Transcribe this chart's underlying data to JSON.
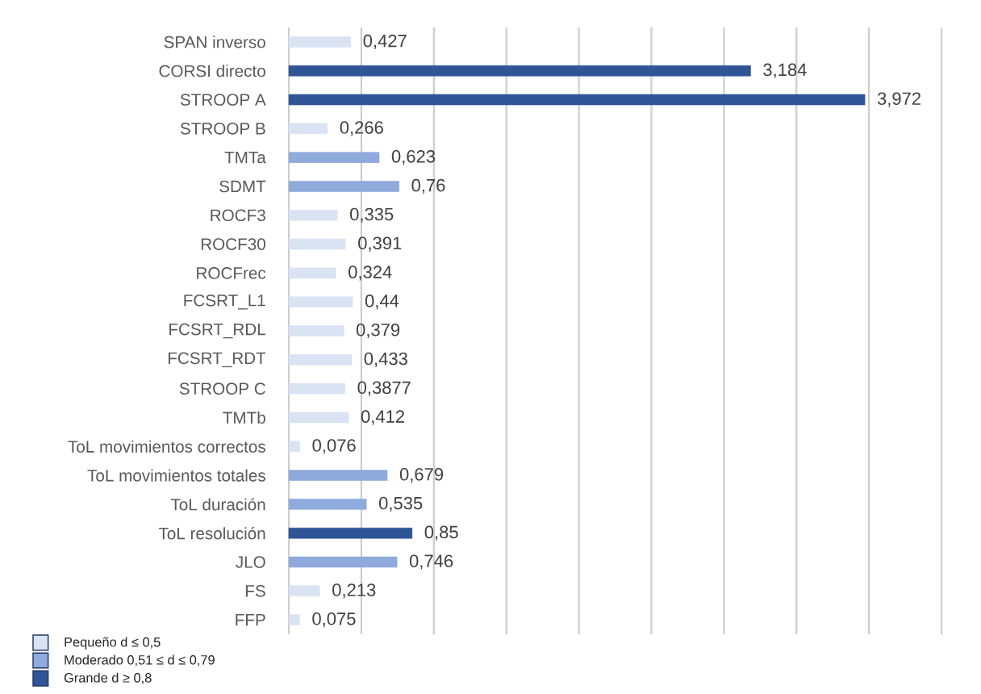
{
  "chart_data": {
    "type": "bar",
    "orientation": "horizontal",
    "stacked": true,
    "categories": [
      "SPAN inverso",
      "CORSI directo",
      "STROOP A",
      "STROOP B",
      "TMTa",
      "SDMT",
      "ROCF3",
      "ROCF30",
      "ROCFrec",
      "FCSRT_L1",
      "FCSRT_RDL",
      "FCSRT_RDT",
      "STROOP C",
      "TMTb",
      "ToL movimientos correctos",
      "ToL movimientos totales",
      "ToL duración",
      "ToL resolución",
      "JLO",
      "FS",
      "FFP"
    ],
    "series": [
      {
        "name": "Pequeño d ≤ 0,5",
        "color": "#dae3f3",
        "values": [
          0.427,
          null,
          null,
          0.266,
          null,
          null,
          0.335,
          0.391,
          0.324,
          0.44,
          0.379,
          0.433,
          0.3877,
          0.412,
          0.076,
          null,
          null,
          null,
          null,
          0.213,
          0.075
        ],
        "value_labels": [
          "0,427",
          null,
          null,
          "0,266",
          null,
          null,
          "0,335",
          "0,391",
          "0,324",
          "0,44",
          "0,379",
          "0,433",
          "0,3877",
          "0,412",
          "0,076",
          null,
          null,
          null,
          null,
          "0,213",
          "0,075"
        ]
      },
      {
        "name": "Moderado 0,51 ≤ d ≤ 0,79",
        "color": "#8faadc",
        "values": [
          null,
          null,
          null,
          null,
          0.623,
          0.76,
          null,
          null,
          null,
          null,
          null,
          null,
          null,
          null,
          null,
          0.679,
          0.535,
          null,
          0.746,
          null,
          null
        ],
        "value_labels": [
          null,
          null,
          null,
          null,
          "0,623",
          "0,76",
          null,
          null,
          null,
          null,
          null,
          null,
          null,
          null,
          null,
          "0,679",
          "0,535",
          null,
          "0,746",
          null,
          null
        ]
      },
      {
        "name": "Grande d ≥ 0,8",
        "color": "#2f5597",
        "values": [
          null,
          3.184,
          3.972,
          null,
          null,
          null,
          null,
          null,
          null,
          null,
          null,
          null,
          null,
          null,
          null,
          null,
          null,
          0.85,
          null,
          null,
          null
        ],
        "value_labels": [
          null,
          "3,184",
          "3,972",
          null,
          null,
          null,
          null,
          null,
          null,
          null,
          null,
          null,
          null,
          null,
          null,
          null,
          null,
          "0,85",
          null,
          null,
          null
        ]
      }
    ],
    "xlim": [
      0,
      4.5
    ],
    "xticks": [
      {
        "value": 0,
        "label": null
      },
      {
        "value": 0.5,
        "label": null
      },
      {
        "value": 1,
        "label": null
      },
      {
        "value": 1.5,
        "label": null
      },
      {
        "value": 2,
        "label": null
      },
      {
        "value": 2.5,
        "label": null
      },
      {
        "value": 3,
        "label": null
      },
      {
        "value": 3.5,
        "label": null
      },
      {
        "value": 4,
        "label": null
      },
      {
        "value": 4.5,
        "label": null
      }
    ],
    "grid": "x",
    "legend": "bottom left",
    "tick_labels": "y"
  }
}
